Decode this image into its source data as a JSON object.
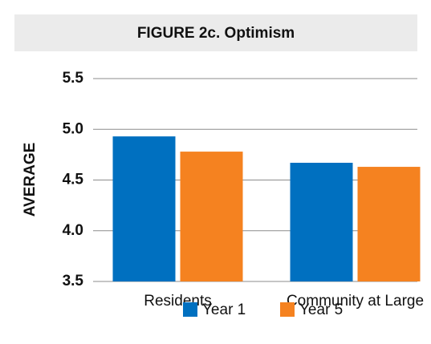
{
  "chart_data": {
    "type": "bar",
    "title": "FIGURE 2c. Optimism",
    "y_label": "AVERAGE",
    "categories": [
      "Residents",
      "Community at Large"
    ],
    "series": [
      {
        "name": "Year 1",
        "color": "#0070c0",
        "values": [
          4.93,
          4.67
        ]
      },
      {
        "name": "Year 5",
        "color": "#f58220",
        "values": [
          4.78,
          4.63
        ]
      }
    ],
    "ylim": [
      3.5,
      5.5
    ],
    "yticks": [
      3.5,
      {
        "value": 4,
        "label": "4.0"
      },
      4.5,
      {
        "value": 5,
        "label": "5.0"
      },
      5.5
    ],
    "grid": true
  }
}
